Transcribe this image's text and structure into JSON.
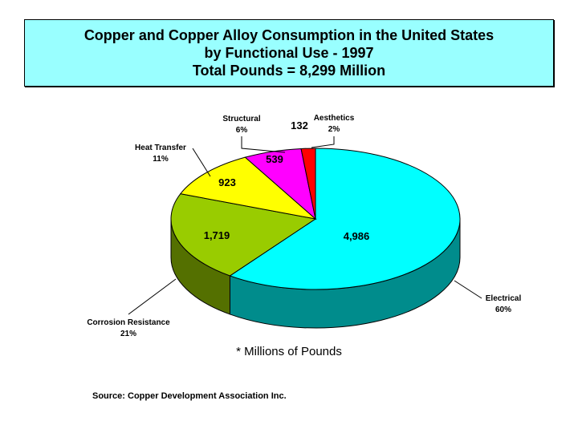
{
  "title": {
    "line1": "Copper and Copper Alloy Consumption in the United States",
    "line2": "by Functional Use - 1997",
    "line3": "Total Pounds = 8,299 Million"
  },
  "footnote": "* Millions of Pounds",
  "source": "Source: Copper Development Association Inc.",
  "colors": {
    "title_bg": "#99ffff",
    "Electrical": "#00ffff",
    "Corrosion Resistance": "#99cc00",
    "Heat Transfer": "#ffff00",
    "Structural": "#ff00ff",
    "Aesthetics": "#ff0000"
  },
  "chart_data": {
    "type": "pie",
    "style": "3d-exploded-none",
    "categories": [
      "Electrical",
      "Corrosion Resistance",
      "Heat Transfer",
      "Structural",
      "Aesthetics"
    ],
    "values": [
      4986,
      1719,
      923,
      539,
      132
    ],
    "value_labels": [
      "4,986",
      "1,719",
      "923",
      "539",
      "132"
    ],
    "percent_labels": [
      "60%",
      "21%",
      "11%",
      "6%",
      "2%"
    ],
    "total": 8299
  }
}
